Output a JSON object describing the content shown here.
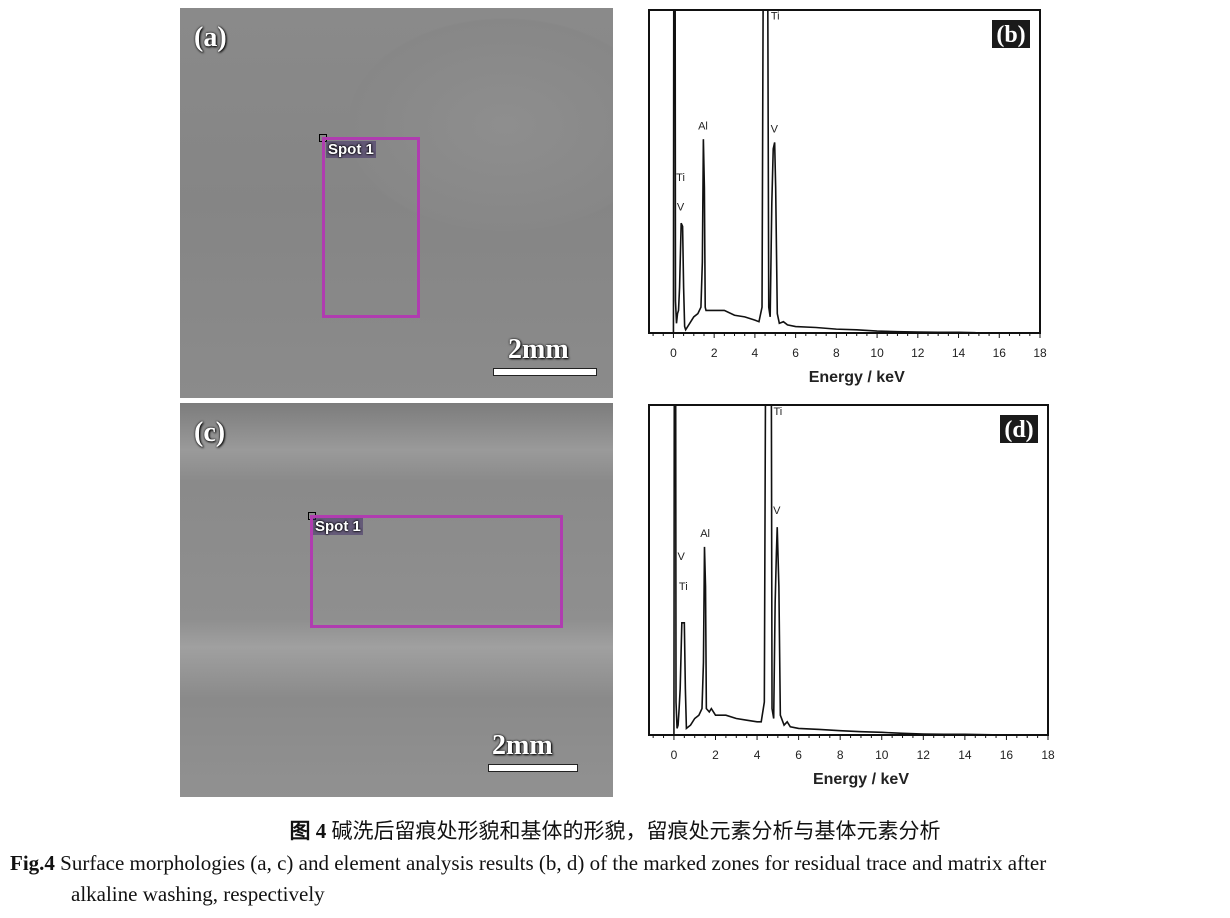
{
  "panels": {
    "a": {
      "label": "(a)",
      "spot": "Spot 1",
      "scale": "2mm"
    },
    "c": {
      "label": "(c)",
      "spot": "Spot 1",
      "scale": "2mm"
    }
  },
  "colors": {
    "spot_box": "#b03cb0",
    "spectrum": "#111111"
  },
  "chart_data": [
    {
      "type": "line",
      "panel_label": "(b)",
      "xlabel": "Energy / keV",
      "ylabel": "",
      "xlim": [
        -1.2,
        18
      ],
      "ylim": [
        0,
        100
      ],
      "y_units": "relative intensity (no axis printed)",
      "xticks": [
        0,
        2,
        4,
        6,
        8,
        10,
        12,
        14,
        16,
        18
      ],
      "grid": false,
      "series": [
        {
          "points": [
            [
              -0.05,
              0
            ],
            [
              0,
              0
            ],
            [
              0.02,
              130
            ],
            [
              0.08,
              130
            ],
            [
              0.1,
              10
            ],
            [
              0.15,
              3
            ],
            [
              0.2,
              6
            ],
            [
              0.25,
              7
            ],
            [
              0.3,
              14
            ],
            [
              0.38,
              34
            ],
            [
              0.45,
              33
            ],
            [
              0.5,
              14
            ],
            [
              0.55,
              2
            ],
            [
              0.6,
              1
            ],
            [
              0.8,
              3
            ],
            [
              1.0,
              5
            ],
            [
              1.2,
              6
            ],
            [
              1.35,
              8
            ],
            [
              1.42,
              22
            ],
            [
              1.47,
              60
            ],
            [
              1.52,
              45
            ],
            [
              1.56,
              8
            ],
            [
              1.6,
              7
            ],
            [
              2,
              7
            ],
            [
              2.5,
              7
            ],
            [
              3,
              5.5
            ],
            [
              3.5,
              5
            ],
            [
              4,
              4
            ],
            [
              4.2,
              3.5
            ],
            [
              4.35,
              8
            ],
            [
              4.42,
              130
            ],
            [
              4.62,
              130
            ],
            [
              4.68,
              8
            ],
            [
              4.75,
              5
            ],
            [
              4.83,
              40
            ],
            [
              4.9,
              57
            ],
            [
              4.97,
              59
            ],
            [
              5.02,
              45
            ],
            [
              5.1,
              6
            ],
            [
              5.2,
              3
            ],
            [
              5.4,
              3.5
            ],
            [
              5.6,
              2.5
            ],
            [
              6,
              2
            ],
            [
              7,
              1.7
            ],
            [
              8,
              1.2
            ],
            [
              9,
              1
            ],
            [
              10,
              0.6
            ],
            [
              11,
              0.4
            ],
            [
              12,
              0.3
            ],
            [
              13,
              0.2
            ],
            [
              14,
              0.2
            ],
            [
              14.8,
              0.1
            ],
            [
              15,
              0
            ]
          ]
        }
      ],
      "annotations": [
        {
          "text": "Ti",
          "x": 0.35,
          "y": 47
        },
        {
          "text": "V",
          "x": 0.35,
          "y": 38
        },
        {
          "text": "Al",
          "x": 1.45,
          "y": 63
        },
        {
          "text": "Ti",
          "x": 5.0,
          "y": 97
        },
        {
          "text": "V",
          "x": 4.95,
          "y": 62
        }
      ]
    },
    {
      "type": "line",
      "panel_label": "(d)",
      "xlabel": "Energy / keV",
      "ylabel": "",
      "xlim": [
        -1.2,
        18
      ],
      "ylim": [
        0,
        100
      ],
      "y_units": "relative intensity (no axis printed)",
      "xticks": [
        0,
        2,
        4,
        6,
        8,
        10,
        12,
        14,
        16,
        18
      ],
      "grid": false,
      "series": [
        {
          "points": [
            [
              -0.05,
              0
            ],
            [
              0,
              0
            ],
            [
              0.02,
              130
            ],
            [
              0.08,
              130
            ],
            [
              0.1,
              10
            ],
            [
              0.15,
              2
            ],
            [
              0.2,
              3
            ],
            [
              0.25,
              8
            ],
            [
              0.3,
              14
            ],
            [
              0.38,
              34
            ],
            [
              0.5,
              34
            ],
            [
              0.55,
              14
            ],
            [
              0.6,
              2
            ],
            [
              0.8,
              3
            ],
            [
              1.0,
              5
            ],
            [
              1.2,
              6
            ],
            [
              1.35,
              8
            ],
            [
              1.42,
              22
            ],
            [
              1.47,
              57
            ],
            [
              1.52,
              45
            ],
            [
              1.56,
              8
            ],
            [
              1.7,
              7
            ],
            [
              1.8,
              8
            ],
            [
              2,
              6
            ],
            [
              2.5,
              6
            ],
            [
              3,
              5
            ],
            [
              3.5,
              4.5
            ],
            [
              4,
              4
            ],
            [
              4.2,
              4
            ],
            [
              4.35,
              10
            ],
            [
              4.42,
              130
            ],
            [
              4.68,
              130
            ],
            [
              4.72,
              8
            ],
            [
              4.8,
              5
            ],
            [
              4.87,
              40
            ],
            [
              4.93,
              55
            ],
            [
              4.97,
              63
            ],
            [
              5.05,
              45
            ],
            [
              5.12,
              6
            ],
            [
              5.3,
              3
            ],
            [
              5.45,
              4
            ],
            [
              5.6,
              2.5
            ],
            [
              6,
              2
            ],
            [
              7,
              1.7
            ],
            [
              8,
              1.3
            ],
            [
              9,
              1
            ],
            [
              10,
              0.8
            ],
            [
              11,
              0.5
            ],
            [
              12,
              0.3
            ],
            [
              13,
              0.2
            ],
            [
              14,
              0.2
            ],
            [
              15,
              0.1
            ],
            [
              16,
              0
            ]
          ]
        }
      ],
      "annotations": [
        {
          "text": "V",
          "x": 0.35,
          "y": 53
        },
        {
          "text": "Ti",
          "x": 0.45,
          "y": 44
        },
        {
          "text": "Al",
          "x": 1.5,
          "y": 60
        },
        {
          "text": "Ti",
          "x": 5.0,
          "y": 97
        },
        {
          "text": "V",
          "x": 4.95,
          "y": 67
        }
      ]
    }
  ],
  "caption": {
    "cn_num": "图 4",
    "cn_text": " 碱洗后留痕处形貌和基体的形貌，留痕处元素分析与基体元素分析",
    "en_num": "Fig.4",
    "en_line1": " Surface morphologies (a, c) and element analysis results (b, d) of the marked zones for residual trace and matrix after",
    "en_line2": "alkaline washing, respectively"
  }
}
